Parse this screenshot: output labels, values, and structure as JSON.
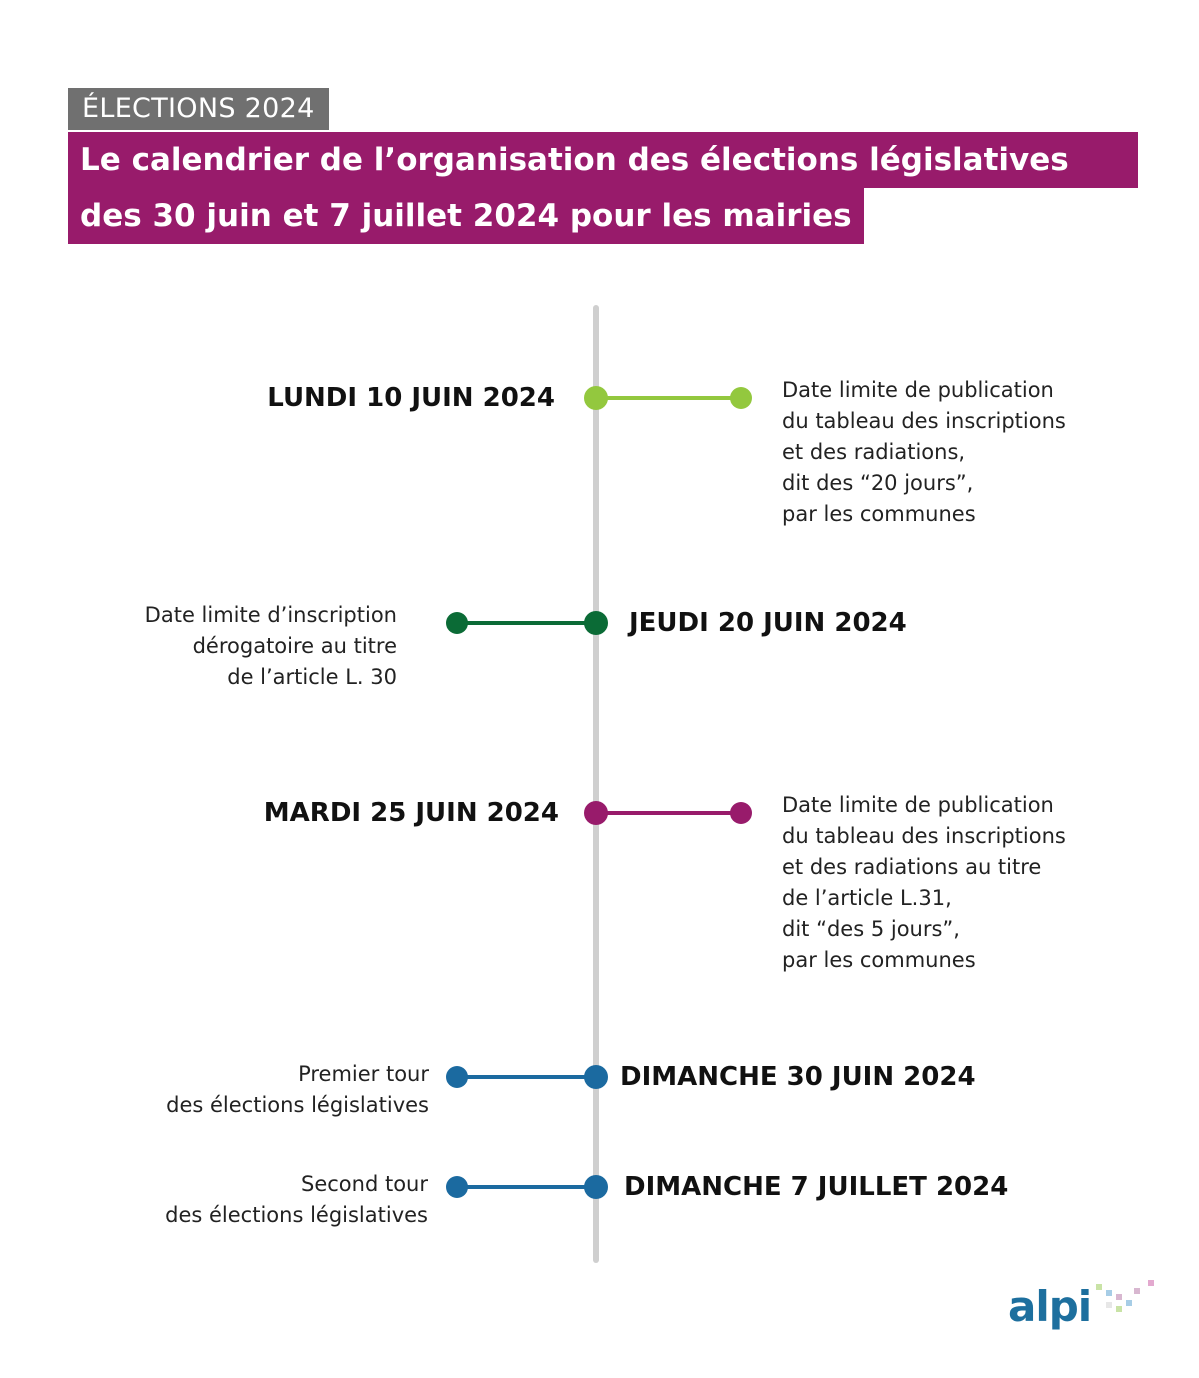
{
  "header": {
    "tag": "ÉLECTIONS 2024",
    "title_line_1": "Le calendrier de l’organisation des élections législatives",
    "title_line_2": "des 30 juin et 7 juillet 2024 pour les mairies"
  },
  "colors": {
    "tag_bg": "#707070",
    "title_bg": "#981b6b",
    "axis": "#cfcfcf",
    "lime": "#93c83e",
    "dark_green": "#0b6b36",
    "purple": "#981b6b",
    "blue": "#1b6aa0"
  },
  "events": [
    {
      "date": "LUNDI 10 JUIN 2024",
      "description": [
        "Date limite de publication",
        "du tableau des inscriptions",
        "et des radiations,",
        "dit des “20 jours”,",
        "par les communes"
      ]
    },
    {
      "date": "JEUDI 20 JUIN 2024",
      "description": [
        "Date limite d’inscription",
        "dérogatoire au titre",
        "de l’article L. 30"
      ]
    },
    {
      "date": "MARDI 25 JUIN 2024",
      "description": [
        "Date limite de publication",
        "du tableau des inscriptions",
        "et des radiations au titre",
        "de l’article L.31,",
        "dit “des 5 jours”,",
        "par les communes"
      ]
    },
    {
      "date": "DIMANCHE  30 JUIN 2024",
      "description": [
        "Premier tour",
        "des élections législatives"
      ]
    },
    {
      "date": "DIMANCHE  7 JUILLET 2024",
      "description": [
        "Second tour",
        "des élections législatives"
      ]
    }
  ],
  "logo": {
    "text": "alpi"
  }
}
